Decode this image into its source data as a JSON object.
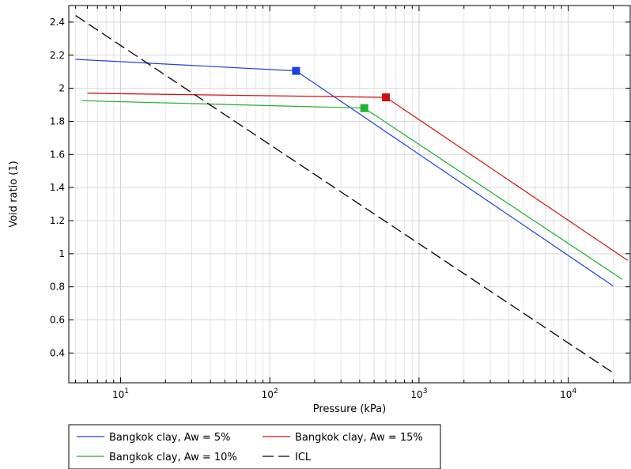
{
  "chart_data": {
    "type": "line",
    "title": "",
    "xlabel": "Pressure (kPa)",
    "ylabel": "Void ratio (1)",
    "xscale": "log",
    "xlim": [
      4.5,
      26000
    ],
    "ylim": [
      0.22,
      2.5
    ],
    "x_tick_labels": [
      {
        "base": "10",
        "exp": "1",
        "value": 10
      },
      {
        "base": "10",
        "exp": "2",
        "value": 100
      },
      {
        "base": "10",
        "exp": "3",
        "value": 1000
      },
      {
        "base": "10",
        "exp": "4",
        "value": 10000
      }
    ],
    "y_ticks": [
      0.4,
      0.6,
      0.8,
      1.0,
      1.2,
      1.4,
      1.6,
      1.8,
      2.0,
      2.2,
      2.4
    ],
    "y_tick_labels": [
      "0.4",
      "0.6",
      "0.8",
      "1",
      "1.2",
      "1.4",
      "1.6",
      "1.8",
      "2",
      "2.2",
      "2.4"
    ],
    "grid": true,
    "legend_position": "bottom",
    "series": [
      {
        "name": "Bangkok clay, Aw = 5%",
        "color": "#1f3fe0",
        "dash": "solid",
        "x": [
          5,
          150,
          20000
        ],
        "y": [
          2.175,
          2.105,
          0.805
        ],
        "marker": {
          "x": 150,
          "y": 2.105
        }
      },
      {
        "name": "Bangkok clay, Aw = 15%",
        "color": "#d01010",
        "dash": "solid",
        "x": [
          6,
          600,
          25000
        ],
        "y": [
          1.97,
          1.945,
          0.96
        ],
        "marker": {
          "x": 600,
          "y": 1.945
        }
      },
      {
        "name": "Bangkok clay, Aw = 10%",
        "color": "#22b030",
        "dash": "solid",
        "x": [
          5.5,
          430,
          23000
        ],
        "y": [
          1.925,
          1.88,
          0.845
        ],
        "marker": {
          "x": 430,
          "y": 1.88
        }
      },
      {
        "name": "ICL",
        "color": "#000000",
        "dash": "dashed",
        "x": [
          5,
          20000
        ],
        "y": [
          2.44,
          0.28
        ]
      }
    ]
  }
}
